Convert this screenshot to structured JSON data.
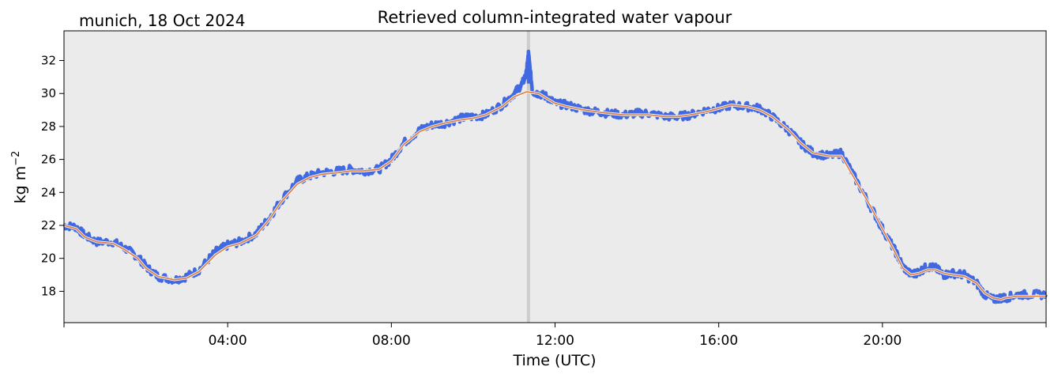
{
  "location_label": "munich, 18 Oct 2024",
  "chart_data": {
    "type": "line",
    "title": "Retrieved column-integrated water vapour",
    "xlabel": "Time (UTC)",
    "ylabel": "kg m",
    "ylabel_superscript": "−2",
    "x_unit": "hours UTC",
    "xlim": [
      0,
      24
    ],
    "ylim": [
      16.1,
      33.8
    ],
    "xticks": [
      {
        "value": 4,
        "label": "04:00"
      },
      {
        "value": 8,
        "label": "08:00"
      },
      {
        "value": 12,
        "label": "12:00"
      },
      {
        "value": 16,
        "label": "16:00"
      },
      {
        "value": 20,
        "label": "20:00"
      }
    ],
    "yticks": [
      18,
      20,
      22,
      24,
      26,
      28,
      30,
      32
    ],
    "grid": false,
    "background": "#ebebeb",
    "vline": {
      "x": 11.35,
      "color": "#cccccc"
    },
    "series": [
      {
        "style": "raw",
        "color": "#4169e1",
        "x": [
          0,
          0.3,
          0.5,
          0.8,
          1.2,
          1.5,
          1.8,
          2.0,
          2.3,
          2.7,
          3.0,
          3.3,
          3.7,
          4.0,
          4.3,
          4.7,
          5.0,
          5.3,
          5.7,
          6.0,
          6.3,
          6.7,
          7.0,
          7.3,
          7.7,
          8.0,
          8.3,
          8.7,
          9.0,
          9.3,
          9.7,
          10.0,
          10.3,
          10.7,
          11.0,
          11.2,
          11.3,
          11.35,
          11.45,
          11.6,
          11.8,
          12.0,
          12.3,
          12.7,
          13.0,
          13.3,
          13.7,
          14.0,
          14.3,
          14.7,
          15.0,
          15.3,
          15.7,
          16.0,
          16.3,
          16.7,
          17.0,
          17.3,
          17.7,
          18.0,
          18.3,
          18.7,
          19.0,
          19.3,
          19.7,
          20.0,
          20.3,
          20.5,
          20.7,
          20.9,
          21.1,
          21.3,
          21.5,
          21.7,
          22.0,
          22.3,
          22.5,
          22.7,
          22.9,
          23.0,
          23.3,
          23.6,
          24.0
        ],
        "y": [
          22.0,
          21.9,
          21.4,
          21.0,
          21.0,
          20.6,
          20.1,
          19.5,
          18.9,
          18.7,
          18.9,
          19.3,
          20.4,
          20.8,
          21.0,
          21.5,
          22.4,
          23.5,
          24.7,
          25.0,
          25.2,
          25.3,
          25.4,
          25.3,
          25.4,
          26.0,
          27.0,
          27.8,
          28.1,
          28.2,
          28.5,
          28.6,
          28.7,
          29.3,
          30.0,
          30.6,
          31.2,
          32.4,
          30.1,
          30.0,
          29.8,
          29.4,
          29.3,
          29.0,
          28.9,
          28.8,
          28.7,
          28.8,
          28.8,
          28.6,
          28.6,
          28.7,
          29.0,
          29.1,
          29.3,
          29.2,
          29.1,
          28.6,
          27.8,
          27.0,
          26.4,
          26.2,
          26.4,
          25.0,
          23.2,
          21.8,
          20.5,
          19.5,
          19.0,
          19.2,
          19.5,
          19.4,
          19.0,
          19.1,
          19.0,
          18.5,
          17.8,
          17.5,
          17.6,
          17.6,
          17.8,
          17.8,
          17.8
        ]
      },
      {
        "style": "smoothed",
        "color": "#e07b39",
        "x": [
          0,
          0.3,
          0.5,
          0.8,
          1.2,
          1.5,
          1.8,
          2.0,
          2.3,
          2.7,
          3.0,
          3.3,
          3.7,
          4.0,
          4.3,
          4.7,
          5.0,
          5.3,
          5.7,
          6.0,
          6.3,
          6.7,
          7.0,
          7.3,
          7.7,
          8.0,
          8.3,
          8.7,
          9.0,
          9.3,
          9.7,
          10.0,
          10.3,
          10.7,
          11.0,
          11.3,
          11.6,
          11.8,
          12.0,
          12.3,
          12.7,
          13.0,
          13.3,
          13.7,
          14.0,
          14.3,
          14.7,
          15.0,
          15.3,
          15.7,
          16.0,
          16.3,
          16.7,
          17.0,
          17.3,
          17.7,
          18.0,
          18.3,
          18.7,
          19.0,
          19.3,
          19.7,
          20.0,
          20.3,
          20.5,
          20.7,
          20.9,
          21.1,
          21.3,
          21.5,
          21.7,
          22.0,
          22.3,
          22.5,
          22.7,
          22.9,
          23.0,
          23.3,
          23.6,
          24.0
        ],
        "y": [
          22.0,
          21.8,
          21.3,
          21.0,
          20.9,
          20.5,
          20.0,
          19.4,
          18.9,
          18.7,
          18.8,
          19.2,
          20.2,
          20.7,
          20.9,
          21.4,
          22.3,
          23.4,
          24.5,
          24.9,
          25.1,
          25.2,
          25.3,
          25.3,
          25.4,
          25.9,
          26.9,
          27.7,
          28.0,
          28.2,
          28.4,
          28.5,
          28.7,
          29.2,
          29.8,
          30.1,
          30.0,
          29.7,
          29.4,
          29.2,
          29.0,
          28.9,
          28.8,
          28.7,
          28.7,
          28.7,
          28.6,
          28.6,
          28.7,
          28.9,
          29.1,
          29.3,
          29.2,
          29.0,
          28.6,
          27.8,
          27.0,
          26.4,
          26.2,
          26.2,
          24.9,
          23.2,
          21.8,
          20.4,
          19.4,
          19.0,
          19.1,
          19.3,
          19.3,
          19.1,
          19.0,
          18.9,
          18.5,
          17.9,
          17.6,
          17.5,
          17.6,
          17.7,
          17.7,
          17.7
        ]
      }
    ]
  }
}
